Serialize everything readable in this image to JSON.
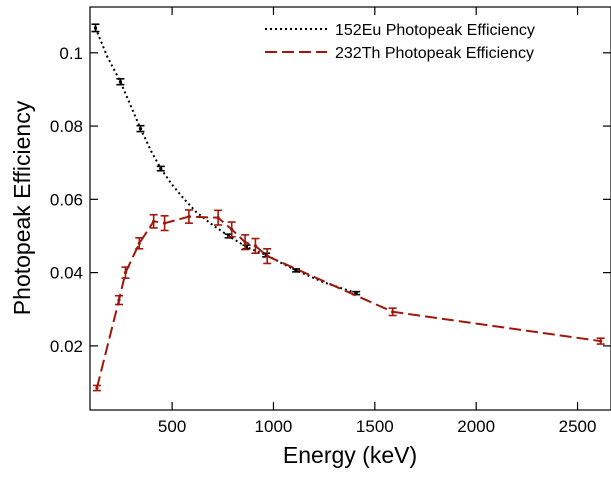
{
  "chart_data": {
    "type": "line",
    "title": "",
    "xlabel": "Energy (keV)",
    "ylabel": "Photopeak Efficiency",
    "xlim": [
      95,
      2665
    ],
    "ylim": [
      0.0025,
      0.1125
    ],
    "grid": false,
    "legend_position": "top-right",
    "x_ticks": [
      500,
      1000,
      1500,
      2000,
      2500
    ],
    "x_tick_labels": [
      "500",
      "1000",
      "1500",
      "2000",
      "2500"
    ],
    "y_ticks": [
      0.02,
      0.04,
      0.06,
      0.08,
      0.1
    ],
    "y_tick_labels": [
      "0.02",
      "0.04",
      "0.06",
      "0.08",
      "0.1"
    ],
    "series": [
      {
        "name": "152Eu Photopeak Efficiency",
        "color": "#000000",
        "line_style": "dotted",
        "points": [
          {
            "x": 122,
            "y": 0.1068,
            "err": 0.001
          },
          {
            "x": 245,
            "y": 0.0921,
            "err": 0.0008
          },
          {
            "x": 344,
            "y": 0.0793,
            "err": 0.0008
          },
          {
            "x": 444,
            "y": 0.0684,
            "err": 0.0006
          },
          {
            "x": 779,
            "y": 0.05,
            "err": 0.0005
          },
          {
            "x": 867,
            "y": 0.047,
            "err": 0.0005
          },
          {
            "x": 964,
            "y": 0.0448,
            "err": 0.0005
          },
          {
            "x": 1112,
            "y": 0.0406,
            "err": 0.0004
          },
          {
            "x": 1408,
            "y": 0.0344,
            "err": 0.0004
          }
        ],
        "curve_x": [
          122,
          180,
          245,
          300,
          344,
          400,
          444,
          500,
          560,
          620,
          700,
          779,
          867,
          964,
          1040,
          1112,
          1250,
          1408
        ],
        "curve_y": [
          0.1068,
          0.099,
          0.0921,
          0.085,
          0.0793,
          0.0728,
          0.0684,
          0.064,
          0.06,
          0.0565,
          0.053,
          0.05,
          0.047,
          0.0448,
          0.0426,
          0.0406,
          0.0373,
          0.0344
        ]
      },
      {
        "name": "232Th Photopeak Efficiency",
        "color": "#a0180c",
        "line_style": "dashed",
        "points": [
          {
            "x": 129,
            "y": 0.0085,
            "err": 0.0007
          },
          {
            "x": 238,
            "y": 0.0325,
            "err": 0.0012
          },
          {
            "x": 270,
            "y": 0.04,
            "err": 0.0015
          },
          {
            "x": 338,
            "y": 0.048,
            "err": 0.0015
          },
          {
            "x": 409,
            "y": 0.054,
            "err": 0.0018
          },
          {
            "x": 463,
            "y": 0.0535,
            "err": 0.002
          },
          {
            "x": 583,
            "y": 0.0553,
            "err": 0.0018
          },
          {
            "x": 727,
            "y": 0.055,
            "err": 0.002
          },
          {
            "x": 794,
            "y": 0.0518,
            "err": 0.002
          },
          {
            "x": 860,
            "y": 0.0483,
            "err": 0.002
          },
          {
            "x": 911,
            "y": 0.0473,
            "err": 0.002
          },
          {
            "x": 969,
            "y": 0.0445,
            "err": 0.002
          },
          {
            "x": 1588,
            "y": 0.0293,
            "err": 0.001
          },
          {
            "x": 2614,
            "y": 0.0213,
            "err": 0.0008
          }
        ]
      }
    ]
  }
}
